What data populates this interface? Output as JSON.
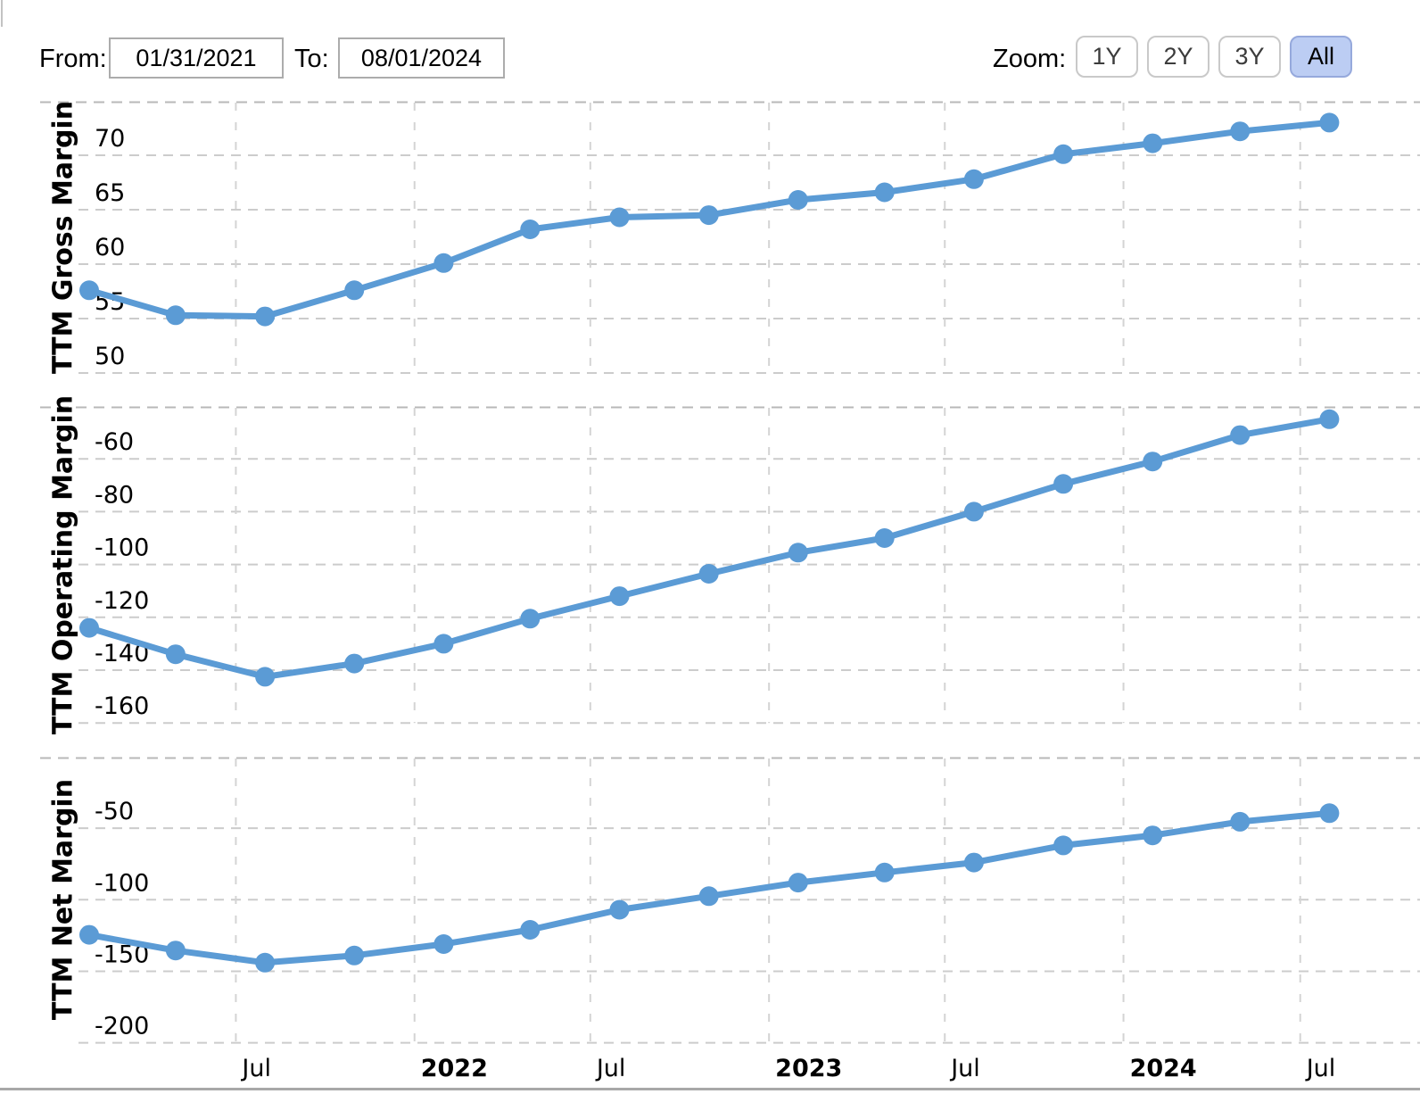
{
  "header": {
    "from_label": "From:",
    "from_value": "01/31/2021",
    "to_label": "To:",
    "to_value": "08/01/2024",
    "zoom_label": "Zoom:",
    "zoom_buttons": [
      {
        "label": "1Y",
        "active": false
      },
      {
        "label": "2Y",
        "active": false
      },
      {
        "label": "3Y",
        "active": false
      },
      {
        "label": "All",
        "active": true
      }
    ]
  },
  "colors": {
    "line": "#5b9bd5",
    "marker": "#5b9bd5",
    "grid": "#cccccc",
    "grid_vertical": "#d4d4d4",
    "boundary": "#b8b8b8",
    "axis_line": "#a8a8a8",
    "active_button_bg": "#bccdf3",
    "active_button_border": "#96a9dc"
  },
  "x_axis": {
    "dates": [
      "2021-01-31",
      "2021-04-30",
      "2021-07-31",
      "2021-10-31",
      "2022-01-31",
      "2022-04-30",
      "2022-07-31",
      "2022-10-31",
      "2023-01-31",
      "2023-04-30",
      "2023-07-31",
      "2023-10-31",
      "2024-01-31",
      "2024-04-30",
      "2024-07-31"
    ],
    "ticks": [
      {
        "date": "2021-07-01",
        "label": "Jul",
        "bold": false
      },
      {
        "date": "2022-01-01",
        "label": "2022",
        "bold": true
      },
      {
        "date": "2022-07-01",
        "label": "Jul",
        "bold": false
      },
      {
        "date": "2023-01-01",
        "label": "2023",
        "bold": true
      },
      {
        "date": "2023-07-01",
        "label": "Jul",
        "bold": false
      },
      {
        "date": "2024-01-01",
        "label": "2024",
        "bold": true
      },
      {
        "date": "2024-07-01",
        "label": "Jul",
        "bold": false
      }
    ]
  },
  "chart_data": [
    {
      "type": "line",
      "title": "TTM Gross Margin",
      "values": [
        57.6,
        55.3,
        55.2,
        57.6,
        60.1,
        63.2,
        64.3,
        64.5,
        65.9,
        66.6,
        67.8,
        70.1,
        71.1,
        72.2,
        73.0
      ],
      "yticks": [
        70,
        65,
        60,
        55,
        50
      ],
      "top_gridline_value": 75,
      "ylim": [
        47,
        75
      ]
    },
    {
      "type": "line",
      "title": "TTM Operating Margin",
      "values": [
        -124,
        -134,
        -142.5,
        -137.5,
        -130,
        -120.5,
        -112,
        -103.5,
        -95.5,
        -90,
        -80,
        -69.5,
        -61,
        -51,
        -45
      ],
      "yticks": [
        -60,
        -80,
        -100,
        -120,
        -140,
        -160
      ],
      "top_gridline_value": -40,
      "ylim": [
        -168,
        -40
      ]
    },
    {
      "type": "line",
      "title": "TTM Net Margin",
      "values": [
        -124.5,
        -135.5,
        -144,
        -139,
        -131,
        -121,
        -107,
        -97.5,
        -88,
        -81,
        -74,
        -62,
        -55,
        -45.5,
        -39.5
      ],
      "yticks": [
        -50,
        -100,
        -150,
        -200
      ],
      "top_gridline_value": 0,
      "ylim": [
        -235,
        0
      ]
    }
  ]
}
